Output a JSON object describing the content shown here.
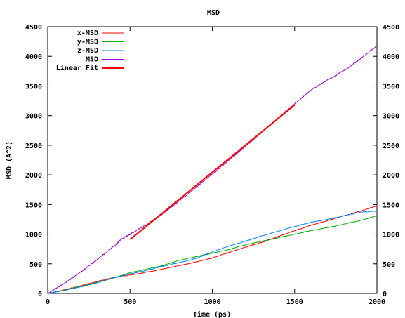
{
  "chart_data": {
    "type": "line",
    "title": "MSD",
    "xlabel": "Time (ps)",
    "ylabel": "MSD (A^2)",
    "xlim": [
      0,
      2000
    ],
    "ylim": [
      0,
      4500
    ],
    "xticks": [
      "0",
      "500",
      "1000",
      "1500",
      "2000"
    ],
    "yticks": [
      "0",
      "500",
      "1000",
      "1500",
      "2000",
      "2500",
      "3000",
      "3500",
      "4000",
      "4500"
    ],
    "grid": false,
    "legend_position": "top-left",
    "series": [
      {
        "name": "x-MSD",
        "color": "#ff0000",
        "x": [
          0,
          100,
          200,
          300,
          400,
          500,
          600,
          700,
          800,
          900,
          1000,
          1100,
          1200,
          1300,
          1400,
          1500,
          1600,
          1700,
          1800,
          1900,
          2000
        ],
        "y": [
          0,
          60,
          130,
          200,
          270,
          310,
          360,
          410,
          470,
          530,
          600,
          690,
          780,
          860,
          960,
          1060,
          1150,
          1230,
          1310,
          1390,
          1480
        ]
      },
      {
        "name": "y-MSD",
        "color": "#00aa00",
        "x": [
          0,
          100,
          200,
          300,
          400,
          500,
          600,
          700,
          800,
          900,
          1000,
          1100,
          1200,
          1300,
          1400,
          1500,
          1600,
          1700,
          1800,
          1900,
          2000
        ],
        "y": [
          0,
          55,
          120,
          190,
          260,
          350,
          410,
          470,
          560,
          620,
          680,
          740,
          820,
          880,
          940,
          1000,
          1060,
          1110,
          1170,
          1230,
          1310
        ]
      },
      {
        "name": "z-MSD",
        "color": "#0080ff",
        "x": [
          0,
          100,
          200,
          300,
          400,
          500,
          600,
          700,
          800,
          900,
          1000,
          1100,
          1200,
          1300,
          1400,
          1500,
          1600,
          1700,
          1800,
          1900,
          2000
        ],
        "y": [
          0,
          50,
          110,
          180,
          260,
          330,
          390,
          460,
          520,
          590,
          700,
          800,
          880,
          970,
          1050,
          1130,
          1200,
          1250,
          1310,
          1370,
          1390
        ]
      },
      {
        "name": "MSD",
        "color": "#9400d3",
        "x": [
          0,
          100,
          200,
          300,
          400,
          450,
          500,
          600,
          700,
          800,
          900,
          1000,
          1100,
          1200,
          1300,
          1400,
          1500,
          1600,
          1700,
          1800,
          1900,
          2000
        ],
        "y": [
          0,
          170,
          360,
          570,
          790,
          920,
          1000,
          1160,
          1350,
          1560,
          1790,
          2010,
          2250,
          2480,
          2720,
          2960,
          3200,
          3430,
          3600,
          3760,
          3960,
          4180
        ]
      },
      {
        "name": "Linear Fit",
        "color": "#ff0000",
        "x": [
          500,
          1500
        ],
        "y": [
          910,
          3180
        ]
      }
    ]
  }
}
